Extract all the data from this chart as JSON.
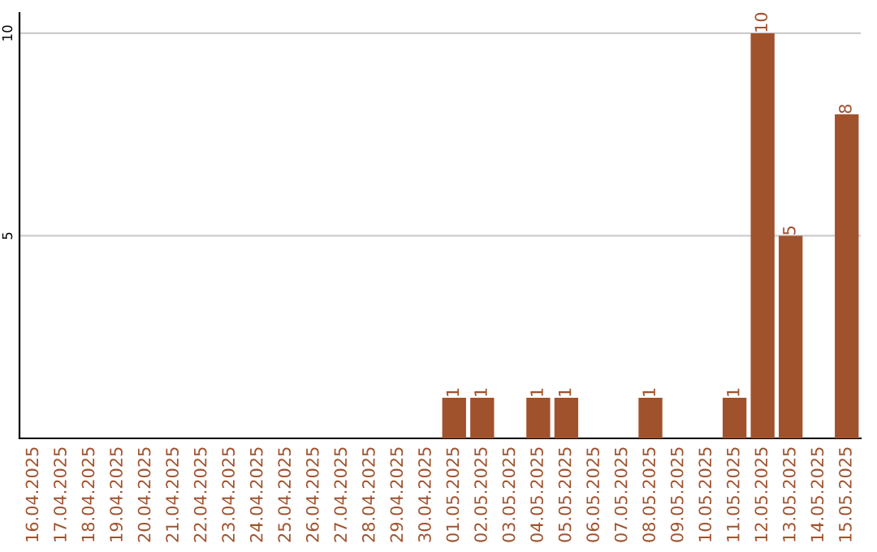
{
  "chart_data": {
    "type": "bar",
    "categories": [
      "16.04.2025",
      "17.04.2025",
      "18.04.2025",
      "19.04.2025",
      "20.04.2025",
      "21.04.2025",
      "22.04.2025",
      "23.04.2025",
      "24.04.2025",
      "25.04.2025",
      "26.04.2025",
      "27.04.2025",
      "28.04.2025",
      "29.04.2025",
      "30.04.2025",
      "01.05.2025",
      "02.05.2025",
      "03.05.2025",
      "04.05.2025",
      "05.05.2025",
      "06.05.2025",
      "07.05.2025",
      "08.05.2025",
      "09.05.2025",
      "10.05.2025",
      "11.05.2025",
      "12.05.2025",
      "13.05.2025",
      "14.05.2025",
      "15.05.2025"
    ],
    "values": [
      0,
      0,
      0,
      0,
      0,
      0,
      0,
      0,
      0,
      0,
      0,
      0,
      0,
      0,
      0,
      1,
      1,
      0,
      1,
      1,
      0,
      0,
      1,
      0,
      0,
      1,
      10,
      5,
      0,
      8
    ],
    "value_labels": [
      null,
      null,
      null,
      null,
      null,
      null,
      null,
      null,
      null,
      null,
      null,
      null,
      null,
      null,
      null,
      "1",
      "1",
      null,
      "1",
      "1",
      null,
      null,
      "1",
      null,
      null,
      "1",
      "10",
      "5",
      null,
      "8"
    ],
    "color": "#a0522d",
    "ylim": [
      0,
      10.5
    ],
    "yticks": [
      5,
      10
    ],
    "grid": "y",
    "legend": false
  }
}
